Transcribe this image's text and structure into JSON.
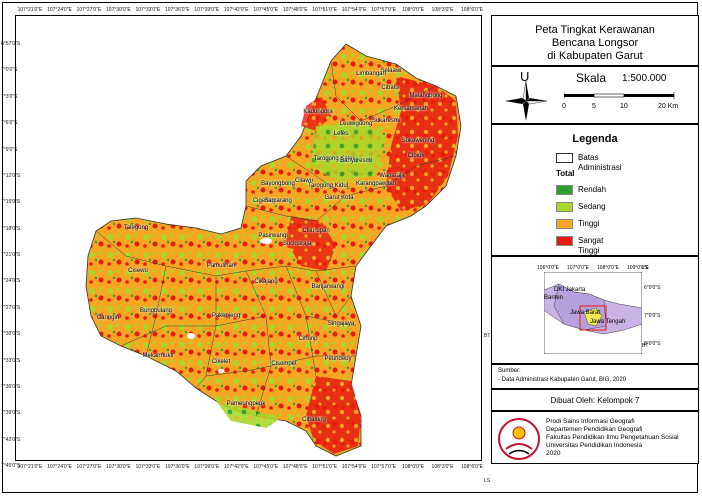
{
  "map": {
    "x_ticks_top": [
      "107°21'0\"E",
      "107°24'0\"E",
      "107°27'0\"E",
      "107°30'0\"E",
      "107°33'0\"E",
      "107°36'0\"E",
      "107°39'0\"E",
      "107°42'0\"E",
      "107°45'0\"E",
      "107°48'0\"E",
      "107°51'0\"E",
      "107°54'0\"E",
      "107°57'0\"E",
      "108°0'0\"E",
      "108°3'0\"E",
      "108°6'0\"E"
    ],
    "x_ticks_bottom": [
      "107°21'0\"E",
      "107°24'0\"E",
      "107°27'0\"E",
      "107°30'0\"E",
      "107°33'0\"E",
      "107°36'0\"E",
      "107°39'0\"E",
      "107°42'0\"E",
      "107°45'0\"E",
      "107°48'0\"E",
      "107°51'0\"E",
      "107°54'0\"E",
      "107°57'0\"E",
      "108°0'0\"E",
      "108°3'0\"E",
      "108°6'0\"E"
    ],
    "y_ticks": [
      "6°57'0\"S",
      "7°0'0\"S",
      "7°3'0\"S",
      "7°6'0\"S",
      "7°9'0\"S",
      "7°12'0\"S",
      "7°15'0\"S",
      "7°18'0\"S",
      "7°21'0\"S",
      "7°24'0\"S",
      "7°27'0\"S",
      "7°30'0\"S",
      "7°33'0\"S",
      "7°36'0\"S",
      "7°39'0\"S",
      "7°42'0\"S",
      "7°45'0\"S"
    ],
    "right_label_bt": "BT",
    "right_label_ls": "LS",
    "places": [
      "Bayongbong",
      "Banyuresmi",
      "Selaawi",
      "Malangbong",
      "Kersamanah",
      "Sukawening",
      "Cibiuk",
      "Leles",
      "Cilawu",
      "Karangpawitan",
      "Wanaraja",
      "Tarogong Kaler",
      "Tarogong Kidul",
      "Garut Kota",
      "Samarang",
      "Cisurupan",
      "Pasirwangi",
      "Sucinaraja",
      "Cigedug",
      "Pamulihan",
      "Cikajang",
      "Banjarwangi",
      "Singajaya",
      "Cihurip",
      "Peundeuy",
      "Cisompet",
      "Cibalong",
      "Cikelet",
      "Pameungpeuk",
      "Pakenjeng",
      "Bungbulang",
      "Mekarmukti",
      "Caringin",
      "Cisewu",
      "Talegong",
      "Cibatu",
      "Kadungora",
      "Leuwigoong",
      "Sukaresmi",
      "Limbangan"
    ]
  },
  "title": {
    "line1": "Peta Tingkat Kerawanan",
    "line2": "Bencana Longsor",
    "line3": "di Kabupaten Garut"
  },
  "scale": {
    "north_letter": "U",
    "label": "Skala",
    "ratio": "1:500.000",
    "ticks": [
      "0",
      "5",
      "10",
      "20 Km"
    ]
  },
  "legend": {
    "title": "Legenda",
    "boundary_label": "Batas Administrasi",
    "total_label": "Total",
    "classes": [
      {
        "label": "Rendah",
        "color": "#2ca02c"
      },
      {
        "label": "Sedang",
        "color": "#a8d82a"
      },
      {
        "label": "Tinggi",
        "color": "#f5a623"
      },
      {
        "label": "Sangat Tinggi",
        "color": "#e8190f"
      }
    ]
  },
  "inset": {
    "x_ticks": [
      "106°0'0\"E",
      "107°0'0\"E",
      "108°0'0\"E",
      "109°0'0\"E"
    ],
    "y_ticks": [
      "6°0'0\"S",
      "7°0'0\"S",
      "8°0'0\"S"
    ],
    "ls_label": "LS",
    "bt_label": "BT",
    "regions": [
      "DKI Jakarta",
      "Banten",
      "Jawa Barat",
      "Jawa Tengah"
    ]
  },
  "source": {
    "heading": "Sumber:",
    "line": "- Data Administrasi Kabupaten Garut, BIG, 2020"
  },
  "made_by": "Dibuat Oleh: Kelompok 7",
  "institution": {
    "lines": [
      "Prodi Sains Informasi Geografi",
      "Departemen Pendidikan Geografi",
      "Fakultas Pendidikan Ilmu Pengetahuan Sosial",
      "Universitas Pendidikan Indonesia",
      "2020"
    ]
  }
}
